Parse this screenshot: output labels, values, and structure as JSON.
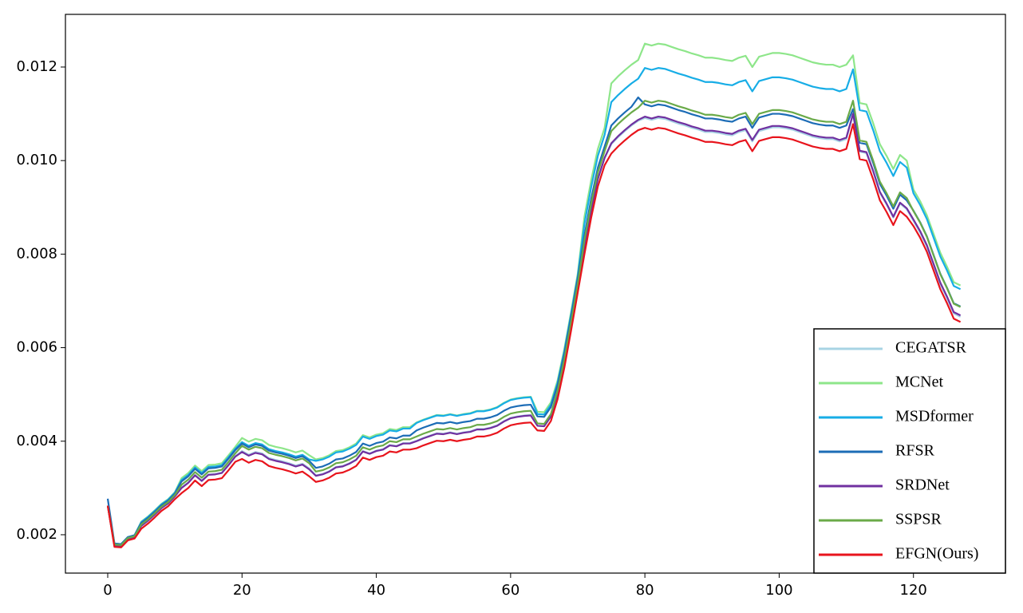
{
  "chart_data": {
    "type": "line",
    "x": [
      0,
      1,
      2,
      3,
      4,
      5,
      6,
      7,
      8,
      9,
      10,
      11,
      12,
      13,
      14,
      15,
      16,
      17,
      18,
      19,
      20,
      21,
      22,
      23,
      24,
      25,
      26,
      27,
      28,
      29,
      30,
      31,
      32,
      33,
      34,
      35,
      36,
      37,
      38,
      39,
      40,
      41,
      42,
      43,
      44,
      45,
      46,
      47,
      48,
      49,
      50,
      51,
      52,
      53,
      54,
      55,
      56,
      57,
      58,
      59,
      60,
      61,
      62,
      63,
      64,
      65,
      66,
      67,
      68,
      69,
      70,
      71,
      72,
      73,
      74,
      75,
      76,
      77,
      78,
      79,
      80,
      81,
      82,
      83,
      84,
      85,
      86,
      87,
      88,
      89,
      90,
      91,
      92,
      93,
      94,
      95,
      96,
      97,
      98,
      99,
      100,
      101,
      102,
      103,
      104,
      105,
      106,
      107,
      108,
      109,
      110,
      111,
      112,
      113,
      114,
      115,
      116,
      117,
      118,
      119,
      120,
      121,
      122,
      123,
      124,
      125,
      126,
      127
    ],
    "series": [
      {
        "name": "CEGATSR",
        "color": "#a8d4e4",
        "values": [
          0.00262,
          0.00177,
          0.00176,
          0.00191,
          0.00195,
          0.0022,
          0.00231,
          0.00244,
          0.00258,
          0.00268,
          0.00283,
          0.00301,
          0.00312,
          0.00328,
          0.00316,
          0.00329,
          0.0033,
          0.00333,
          0.0035,
          0.00368,
          0.00379,
          0.00371,
          0.00377,
          0.00374,
          0.00364,
          0.0036,
          0.00357,
          0.00353,
          0.00348,
          0.00352,
          0.00342,
          0.00327,
          0.0033,
          0.00336,
          0.00345,
          0.00347,
          0.00353,
          0.00361,
          0.00379,
          0.00374,
          0.0038,
          0.00383,
          0.00392,
          0.0039,
          0.00396,
          0.00396,
          0.00401,
          0.00407,
          0.00412,
          0.00417,
          0.00416,
          0.00419,
          0.00416,
          0.00419,
          0.00421,
          0.00426,
          0.00426,
          0.00429,
          0.00434,
          0.00443,
          0.0045,
          0.00453,
          0.00455,
          0.00456,
          0.00433,
          0.00432,
          0.00453,
          0.00502,
          0.00569,
          0.00648,
          0.0073,
          0.00815,
          0.00893,
          0.0096,
          0.01005,
          0.01035,
          0.0105,
          0.01063,
          0.01075,
          0.01085,
          0.01091,
          0.01087,
          0.01091,
          0.01089,
          0.01084,
          0.01079,
          0.01075,
          0.0107,
          0.01066,
          0.01061,
          0.01061,
          0.01059,
          0.01056,
          0.01054,
          0.01061,
          0.01065,
          0.01041,
          0.01063,
          0.01067,
          0.01071,
          0.01071,
          0.01069,
          0.01066,
          0.01061,
          0.01056,
          0.01051,
          0.01048,
          0.01046,
          0.01046,
          0.01041,
          0.01046,
          0.01098,
          0.01019,
          0.01016,
          0.00976,
          0.00931,
          0.00906,
          0.00878,
          0.00908,
          0.00896,
          0.00871,
          0.00846,
          0.00816,
          0.00776,
          0.00736,
          0.00706,
          0.00673,
          0.00666
        ]
      },
      {
        "name": "MCNet",
        "color": "#8ee68a",
        "values": [
          0.00262,
          0.00181,
          0.0018,
          0.00195,
          0.00199,
          0.00228,
          0.00239,
          0.00252,
          0.00266,
          0.00276,
          0.00291,
          0.00321,
          0.00332,
          0.00348,
          0.00336,
          0.00349,
          0.0035,
          0.00353,
          0.0037,
          0.00388,
          0.00407,
          0.00399,
          0.00405,
          0.00402,
          0.00392,
          0.00388,
          0.00385,
          0.00381,
          0.00376,
          0.0038,
          0.0037,
          0.00361,
          0.00364,
          0.0037,
          0.00379,
          0.00381,
          0.00387,
          0.00395,
          0.00413,
          0.00408,
          0.00414,
          0.00417,
          0.00426,
          0.00424,
          0.0043,
          0.0043,
          0.0044,
          0.00446,
          0.00451,
          0.00456,
          0.00455,
          0.00458,
          0.00455,
          0.00458,
          0.0046,
          0.00465,
          0.00465,
          0.00468,
          0.00473,
          0.00482,
          0.00489,
          0.00492,
          0.00494,
          0.00495,
          0.00463,
          0.00462,
          0.00483,
          0.0053,
          0.00597,
          0.00676,
          0.00758,
          0.0088,
          0.00958,
          0.01025,
          0.0107,
          0.01165,
          0.0118,
          0.01193,
          0.01205,
          0.01215,
          0.0125,
          0.01246,
          0.0125,
          0.01248,
          0.01243,
          0.01238,
          0.01234,
          0.01229,
          0.01225,
          0.0122,
          0.0122,
          0.01218,
          0.01215,
          0.01213,
          0.0122,
          0.01224,
          0.012,
          0.01222,
          0.01226,
          0.0123,
          0.0123,
          0.01228,
          0.01225,
          0.0122,
          0.01215,
          0.0121,
          0.01207,
          0.01205,
          0.01205,
          0.012,
          0.01205,
          0.01225,
          0.01123,
          0.0112,
          0.0108,
          0.01035,
          0.0101,
          0.00982,
          0.01012,
          0.01,
          0.00938,
          0.00913,
          0.00883,
          0.00843,
          0.00803,
          0.00773,
          0.0074,
          0.00733
        ]
      },
      {
        "name": "MSDformer",
        "color": "#17ade6",
        "values": [
          0.00262,
          0.00181,
          0.0018,
          0.00195,
          0.00199,
          0.00227,
          0.00238,
          0.00251,
          0.00265,
          0.00275,
          0.0029,
          0.00317,
          0.00328,
          0.00344,
          0.00332,
          0.00345,
          0.00346,
          0.00349,
          0.00366,
          0.00384,
          0.00398,
          0.0039,
          0.00396,
          0.00393,
          0.00383,
          0.00379,
          0.00376,
          0.00372,
          0.00367,
          0.00371,
          0.00361,
          0.00358,
          0.00361,
          0.00367,
          0.00376,
          0.00378,
          0.00384,
          0.00392,
          0.0041,
          0.00405,
          0.00411,
          0.00414,
          0.00423,
          0.00421,
          0.00427,
          0.00427,
          0.00439,
          0.00445,
          0.0045,
          0.00455,
          0.00454,
          0.00457,
          0.00454,
          0.00457,
          0.00459,
          0.00464,
          0.00464,
          0.00467,
          0.00472,
          0.00481,
          0.00488,
          0.00491,
          0.00493,
          0.00494,
          0.00458,
          0.00457,
          0.00478,
          0.00525,
          0.00592,
          0.00671,
          0.00753,
          0.00865,
          0.00943,
          0.0101,
          0.01055,
          0.01125,
          0.0114,
          0.01153,
          0.01165,
          0.01175,
          0.01198,
          0.01194,
          0.01198,
          0.01196,
          0.01191,
          0.01186,
          0.01182,
          0.01177,
          0.01173,
          0.01168,
          0.01168,
          0.01166,
          0.01163,
          0.01161,
          0.01168,
          0.01172,
          0.01148,
          0.0117,
          0.01174,
          0.01178,
          0.01178,
          0.01176,
          0.01173,
          0.01168,
          0.01163,
          0.01158,
          0.01155,
          0.01153,
          0.01153,
          0.01148,
          0.01153,
          0.01195,
          0.01108,
          0.01105,
          0.01065,
          0.0102,
          0.00995,
          0.00967,
          0.00997,
          0.00985,
          0.0093,
          0.00905,
          0.00875,
          0.00835,
          0.00795,
          0.00765,
          0.00732,
          0.00725
        ]
      },
      {
        "name": "RFSR",
        "color": "#1c6cb6",
        "values": [
          0.00277,
          0.00181,
          0.0018,
          0.00195,
          0.00199,
          0.00225,
          0.00236,
          0.00249,
          0.00263,
          0.00273,
          0.00288,
          0.00314,
          0.00325,
          0.00341,
          0.00329,
          0.00342,
          0.00343,
          0.00346,
          0.00363,
          0.00381,
          0.00395,
          0.00387,
          0.00393,
          0.0039,
          0.0038,
          0.00376,
          0.00373,
          0.00369,
          0.00364,
          0.00368,
          0.00358,
          0.00343,
          0.00346,
          0.00352,
          0.00361,
          0.00363,
          0.00369,
          0.00377,
          0.00395,
          0.0039,
          0.00396,
          0.00399,
          0.00408,
          0.00406,
          0.00412,
          0.00412,
          0.00423,
          0.00429,
          0.00434,
          0.00439,
          0.00438,
          0.00441,
          0.00438,
          0.00441,
          0.00443,
          0.00448,
          0.00448,
          0.00451,
          0.00456,
          0.00465,
          0.00472,
          0.00475,
          0.00477,
          0.00478,
          0.00453,
          0.00452,
          0.00473,
          0.0052,
          0.00587,
          0.00666,
          0.00748,
          0.0084,
          0.00918,
          0.00985,
          0.0103,
          0.01075,
          0.0109,
          0.01103,
          0.01115,
          0.01135,
          0.0112,
          0.01116,
          0.0112,
          0.01118,
          0.01113,
          0.01108,
          0.01104,
          0.01099,
          0.01095,
          0.0109,
          0.0109,
          0.01088,
          0.01085,
          0.01083,
          0.0109,
          0.01094,
          0.0107,
          0.01092,
          0.01096,
          0.011,
          0.011,
          0.01098,
          0.01095,
          0.0109,
          0.01085,
          0.0108,
          0.01077,
          0.01075,
          0.01075,
          0.0107,
          0.01075,
          0.0111,
          0.01038,
          0.01035,
          0.00995,
          0.0095,
          0.00925,
          0.00897,
          0.00927,
          0.00915,
          0.00893,
          0.00868,
          0.00838,
          0.00798,
          0.00758,
          0.00728,
          0.00695,
          0.00688
        ]
      },
      {
        "name": "SRDNet",
        "color": "#7030a0",
        "values": [
          0.00262,
          0.00177,
          0.00176,
          0.00191,
          0.00195,
          0.00219,
          0.0023,
          0.00243,
          0.00257,
          0.00267,
          0.00282,
          0.003,
          0.00311,
          0.00327,
          0.00315,
          0.00328,
          0.00329,
          0.00332,
          0.00349,
          0.00367,
          0.00377,
          0.00369,
          0.00375,
          0.00372,
          0.00362,
          0.00358,
          0.00355,
          0.00351,
          0.00346,
          0.0035,
          0.0034,
          0.00326,
          0.00329,
          0.00335,
          0.00344,
          0.00346,
          0.00352,
          0.0036,
          0.00378,
          0.00373,
          0.00379,
          0.00382,
          0.00391,
          0.00389,
          0.00395,
          0.00395,
          0.004,
          0.00406,
          0.00411,
          0.00416,
          0.00415,
          0.00418,
          0.00415,
          0.00418,
          0.0042,
          0.00425,
          0.00425,
          0.00428,
          0.00433,
          0.00442,
          0.00449,
          0.00452,
          0.00454,
          0.00455,
          0.00433,
          0.00432,
          0.00453,
          0.00502,
          0.00569,
          0.00648,
          0.0073,
          0.00816,
          0.00894,
          0.00961,
          0.01006,
          0.01037,
          0.01052,
          0.01065,
          0.01077,
          0.01087,
          0.01094,
          0.0109,
          0.01094,
          0.01092,
          0.01087,
          0.01082,
          0.01078,
          0.01073,
          0.01069,
          0.01064,
          0.01064,
          0.01062,
          0.01059,
          0.01057,
          0.01064,
          0.01068,
          0.01044,
          0.01066,
          0.0107,
          0.01074,
          0.01074,
          0.01072,
          0.01069,
          0.01064,
          0.01059,
          0.01054,
          0.01051,
          0.01049,
          0.01049,
          0.01044,
          0.01049,
          0.011,
          0.01021,
          0.01018,
          0.00978,
          0.00933,
          0.00908,
          0.0088,
          0.0091,
          0.00898,
          0.00874,
          0.00849,
          0.00819,
          0.00779,
          0.00739,
          0.00709,
          0.00676,
          0.00669
        ]
      },
      {
        "name": "SSPSR",
        "color": "#6aaa48",
        "values": [
          0.00262,
          0.00179,
          0.00178,
          0.00193,
          0.00197,
          0.00222,
          0.00233,
          0.00246,
          0.0026,
          0.0027,
          0.00285,
          0.00307,
          0.00318,
          0.00334,
          0.00322,
          0.00335,
          0.00336,
          0.00339,
          0.00356,
          0.00374,
          0.0039,
          0.00382,
          0.00388,
          0.00385,
          0.00375,
          0.00371,
          0.00368,
          0.00364,
          0.00359,
          0.00363,
          0.00353,
          0.00335,
          0.00338,
          0.00344,
          0.00353,
          0.00355,
          0.00361,
          0.00369,
          0.00387,
          0.00382,
          0.00388,
          0.00391,
          0.004,
          0.00398,
          0.00404,
          0.00404,
          0.0041,
          0.00416,
          0.00421,
          0.00426,
          0.00425,
          0.00428,
          0.00425,
          0.00428,
          0.0043,
          0.00435,
          0.00435,
          0.00438,
          0.00443,
          0.00452,
          0.00459,
          0.00462,
          0.00464,
          0.00465,
          0.00438,
          0.00437,
          0.00458,
          0.00508,
          0.00575,
          0.00654,
          0.00736,
          0.0083,
          0.00908,
          0.00975,
          0.0102,
          0.01063,
          0.01078,
          0.01091,
          0.01103,
          0.01113,
          0.01128,
          0.01124,
          0.01128,
          0.01126,
          0.01121,
          0.01116,
          0.01112,
          0.01107,
          0.01103,
          0.01098,
          0.01098,
          0.01096,
          0.01093,
          0.01091,
          0.01098,
          0.01102,
          0.01078,
          0.011,
          0.01104,
          0.01108,
          0.01108,
          0.01106,
          0.01103,
          0.01098,
          0.01093,
          0.01088,
          0.01085,
          0.01083,
          0.01083,
          0.01078,
          0.01083,
          0.01128,
          0.01043,
          0.0104,
          0.01,
          0.00955,
          0.0093,
          0.00902,
          0.00932,
          0.0092,
          0.00892,
          0.00867,
          0.00837,
          0.00797,
          0.00757,
          0.00727,
          0.00694,
          0.00687
        ]
      },
      {
        "name": "EFGN(Ours)",
        "color": "#e8141c",
        "values": [
          0.00262,
          0.00174,
          0.00173,
          0.00188,
          0.00192,
          0.00213,
          0.00224,
          0.00237,
          0.00251,
          0.00261,
          0.00276,
          0.00289,
          0.003,
          0.00316,
          0.00304,
          0.00317,
          0.00318,
          0.00321,
          0.00338,
          0.00356,
          0.00362,
          0.00354,
          0.0036,
          0.00357,
          0.00347,
          0.00343,
          0.0034,
          0.00336,
          0.00331,
          0.00335,
          0.00325,
          0.00313,
          0.00316,
          0.00322,
          0.00331,
          0.00333,
          0.00339,
          0.00347,
          0.00365,
          0.0036,
          0.00366,
          0.00369,
          0.00378,
          0.00376,
          0.00382,
          0.00382,
          0.00385,
          0.00391,
          0.00396,
          0.00401,
          0.004,
          0.00403,
          0.004,
          0.00403,
          0.00405,
          0.0041,
          0.0041,
          0.00413,
          0.00418,
          0.00427,
          0.00434,
          0.00437,
          0.00439,
          0.0044,
          0.00423,
          0.00422,
          0.00443,
          0.0049,
          0.00557,
          0.00636,
          0.00718,
          0.008,
          0.00878,
          0.00945,
          0.0099,
          0.01015,
          0.0103,
          0.01043,
          0.01055,
          0.01065,
          0.0107,
          0.01066,
          0.0107,
          0.01068,
          0.01063,
          0.01058,
          0.01054,
          0.01049,
          0.01045,
          0.0104,
          0.0104,
          0.01038,
          0.01035,
          0.01033,
          0.0104,
          0.01044,
          0.0102,
          0.01042,
          0.01046,
          0.0105,
          0.0105,
          0.01048,
          0.01045,
          0.0104,
          0.01035,
          0.0103,
          0.01027,
          0.01025,
          0.01025,
          0.0102,
          0.01025,
          0.01078,
          0.01003,
          0.01,
          0.0096,
          0.00915,
          0.0089,
          0.00862,
          0.00892,
          0.0088,
          0.0086,
          0.00835,
          0.00805,
          0.00765,
          0.00725,
          0.00695,
          0.00662,
          0.00655
        ]
      }
    ],
    "xlim": [
      -6.3,
      133.7
    ],
    "xticks": [
      0,
      20,
      40,
      60,
      80,
      100,
      120
    ],
    "ylim": [
      0.00118,
      0.013126
    ],
    "yticks": [
      0.002,
      0.004,
      0.006,
      0.008,
      {
        "value": 0.01,
        "label": "0.010"
      },
      0.012
    ],
    "grid": false,
    "legend": "lower right"
  }
}
